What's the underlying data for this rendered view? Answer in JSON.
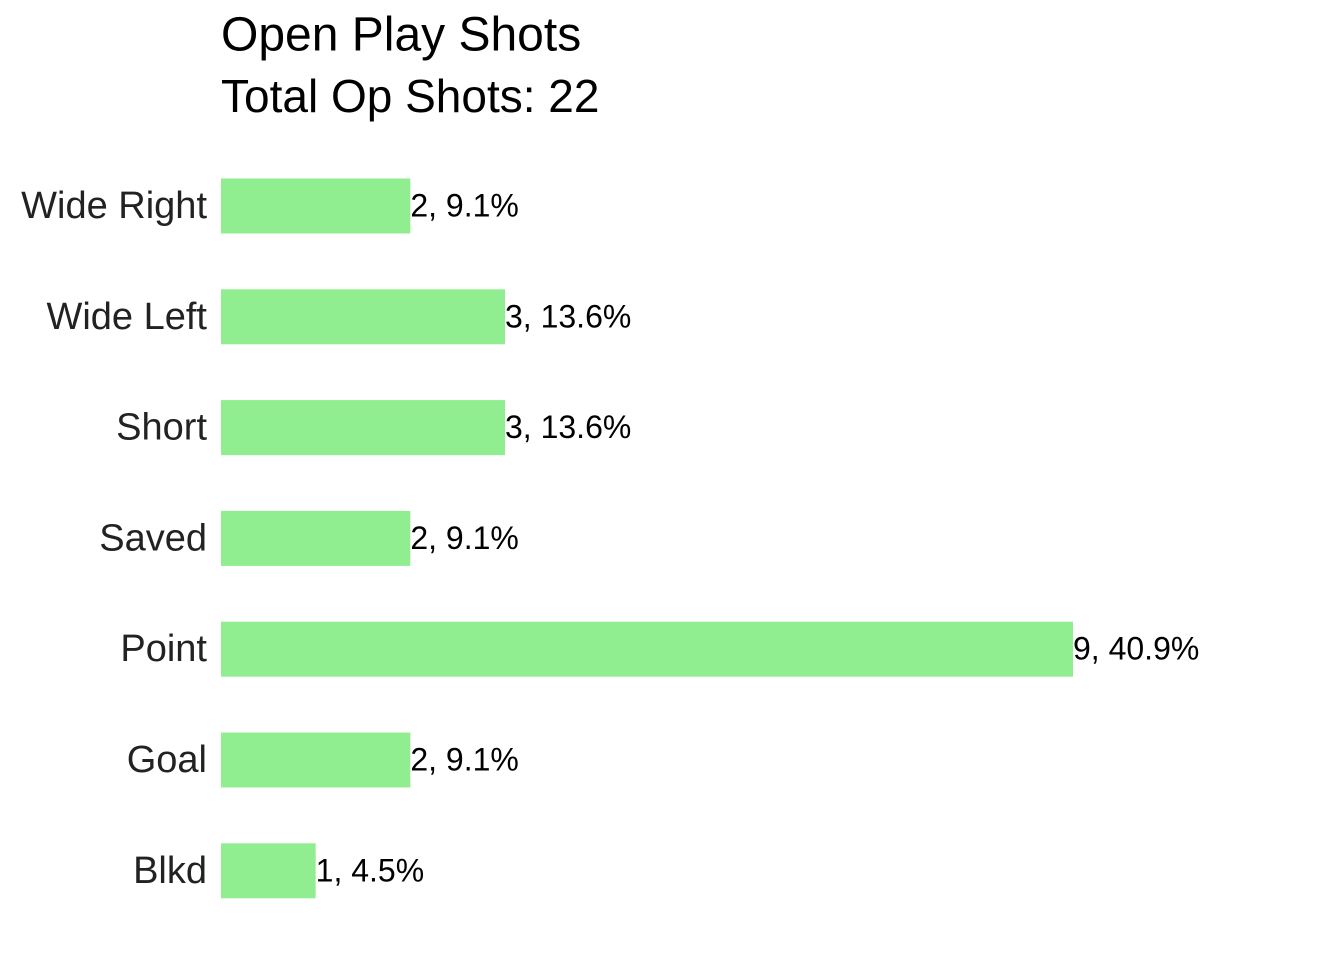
{
  "chart_data": {
    "type": "bar",
    "orientation": "horizontal",
    "title": "Open Play Shots",
    "subtitle": "Total Op Shots: 22",
    "categories": [
      "Wide Right",
      "Wide Left",
      "Short",
      "Saved",
      "Point",
      "Goal",
      "Blkd"
    ],
    "values": [
      2,
      3,
      3,
      2,
      9,
      2,
      1
    ],
    "value_labels": [
      "2, 9.1%",
      "3, 13.6%",
      "3, 13.6%",
      "2, 9.1%",
      "9, 40.9%",
      "2, 9.1%",
      "1, 4.5%"
    ],
    "color": "#90ee90"
  }
}
